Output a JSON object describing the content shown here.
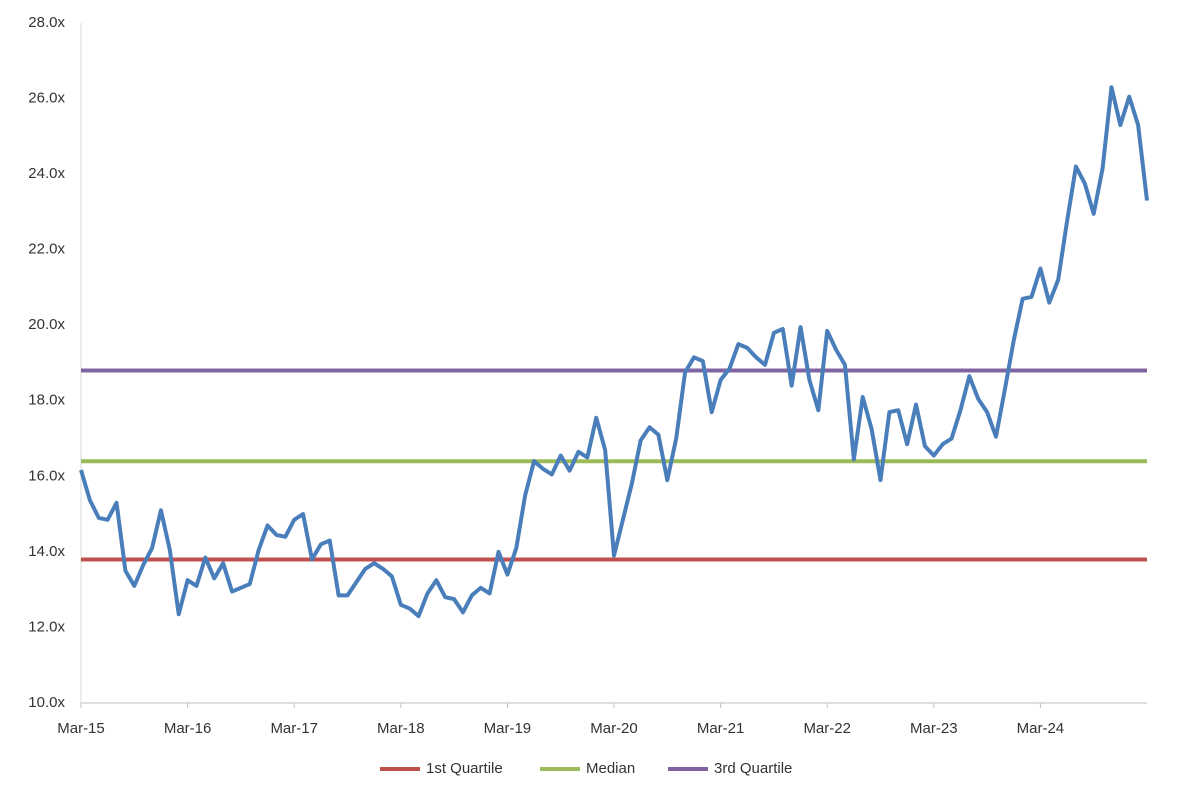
{
  "chart_data": {
    "type": "line",
    "categories": [
      "Mar-15",
      null,
      null,
      null,
      null,
      null,
      null,
      null,
      null,
      null,
      null,
      null,
      "Mar-16",
      null,
      null,
      null,
      null,
      null,
      null,
      null,
      null,
      null,
      null,
      null,
      "Mar-17",
      null,
      null,
      null,
      null,
      null,
      null,
      null,
      null,
      null,
      null,
      null,
      "Mar-18",
      null,
      null,
      null,
      null,
      null,
      null,
      null,
      null,
      null,
      null,
      null,
      "Mar-19",
      null,
      null,
      null,
      null,
      null,
      null,
      null,
      null,
      null,
      null,
      null,
      "Mar-20",
      null,
      null,
      null,
      null,
      null,
      null,
      null,
      null,
      null,
      null,
      null,
      "Mar-21",
      null,
      null,
      null,
      null,
      null,
      null,
      null,
      null,
      null,
      null,
      null,
      "Mar-22",
      null,
      null,
      null,
      null,
      null,
      null,
      null,
      null,
      null,
      null,
      null,
      "Mar-23",
      null,
      null,
      null,
      null,
      null,
      null,
      null,
      null,
      null,
      null,
      null,
      "Mar-24",
      null,
      null,
      null,
      null,
      null,
      null,
      null,
      null,
      null,
      null,
      null,
      null
    ],
    "series": [
      {
        "color": "#4a7ebb",
        "values": [
          16.17,
          15.37,
          14.9,
          14.85,
          15.3,
          13.5,
          13.1,
          13.65,
          14.1,
          15.1,
          14.05,
          12.35,
          13.25,
          13.1,
          13.85,
          13.3,
          13.7,
          12.95,
          13.05,
          13.15,
          14.05,
          14.7,
          14.45,
          14.4,
          14.85,
          15.0,
          13.8,
          14.2,
          14.3,
          12.85,
          12.85,
          13.2,
          13.55,
          13.7,
          13.55,
          13.35,
          12.6,
          12.5,
          12.3,
          12.9,
          13.25,
          12.8,
          12.75,
          12.4,
          12.85,
          13.05,
          12.9,
          14.0,
          13.4,
          14.1,
          15.5,
          16.4,
          16.2,
          16.05,
          16.55,
          16.15,
          16.65,
          16.5,
          17.55,
          16.7,
          13.9,
          14.85,
          15.8,
          16.95,
          17.3,
          17.1,
          15.9,
          17.0,
          18.75,
          19.15,
          19.05,
          17.7,
          18.55,
          18.85,
          19.5,
          19.4,
          19.15,
          18.95,
          19.8,
          19.9,
          18.4,
          19.95,
          18.55,
          17.75,
          19.85,
          19.35,
          18.95,
          16.45,
          18.1,
          17.25,
          15.9,
          17.7,
          17.75,
          16.85,
          17.9,
          16.8,
          16.55,
          16.85,
          17.0,
          17.75,
          18.65,
          18.05,
          17.7,
          17.05,
          18.3,
          19.6,
          20.7,
          20.75,
          21.5,
          20.6,
          21.2,
          22.75,
          24.2,
          23.75,
          22.95,
          24.15,
          26.3,
          25.3,
          26.05,
          25.3,
          23.3
        ]
      }
    ],
    "reference_lines": [
      {
        "name": "1st Quartile",
        "color": "#c0504d",
        "value": 13.8
      },
      {
        "name": "Median",
        "color": "#9bbb59",
        "value": 16.4
      },
      {
        "name": "3rd Quartile",
        "color": "#8064a2",
        "value": 18.8
      }
    ],
    "ylim": [
      10,
      28
    ],
    "yticks": [
      {
        "value": 10,
        "label": "10.0x"
      },
      {
        "value": 12,
        "label": "12.0x"
      },
      {
        "value": 14,
        "label": "14.0x"
      },
      {
        "value": 16,
        "label": "16.0x"
      },
      {
        "value": 18,
        "label": "18.0x"
      },
      {
        "value": 20,
        "label": "20.0x"
      },
      {
        "value": 22,
        "label": "22.0x"
      },
      {
        "value": 24,
        "label": "24.0x"
      },
      {
        "value": 26,
        "label": "26.0x"
      },
      {
        "value": 28,
        "label": "28.0x"
      }
    ],
    "grid": false,
    "legend": "bottom"
  }
}
